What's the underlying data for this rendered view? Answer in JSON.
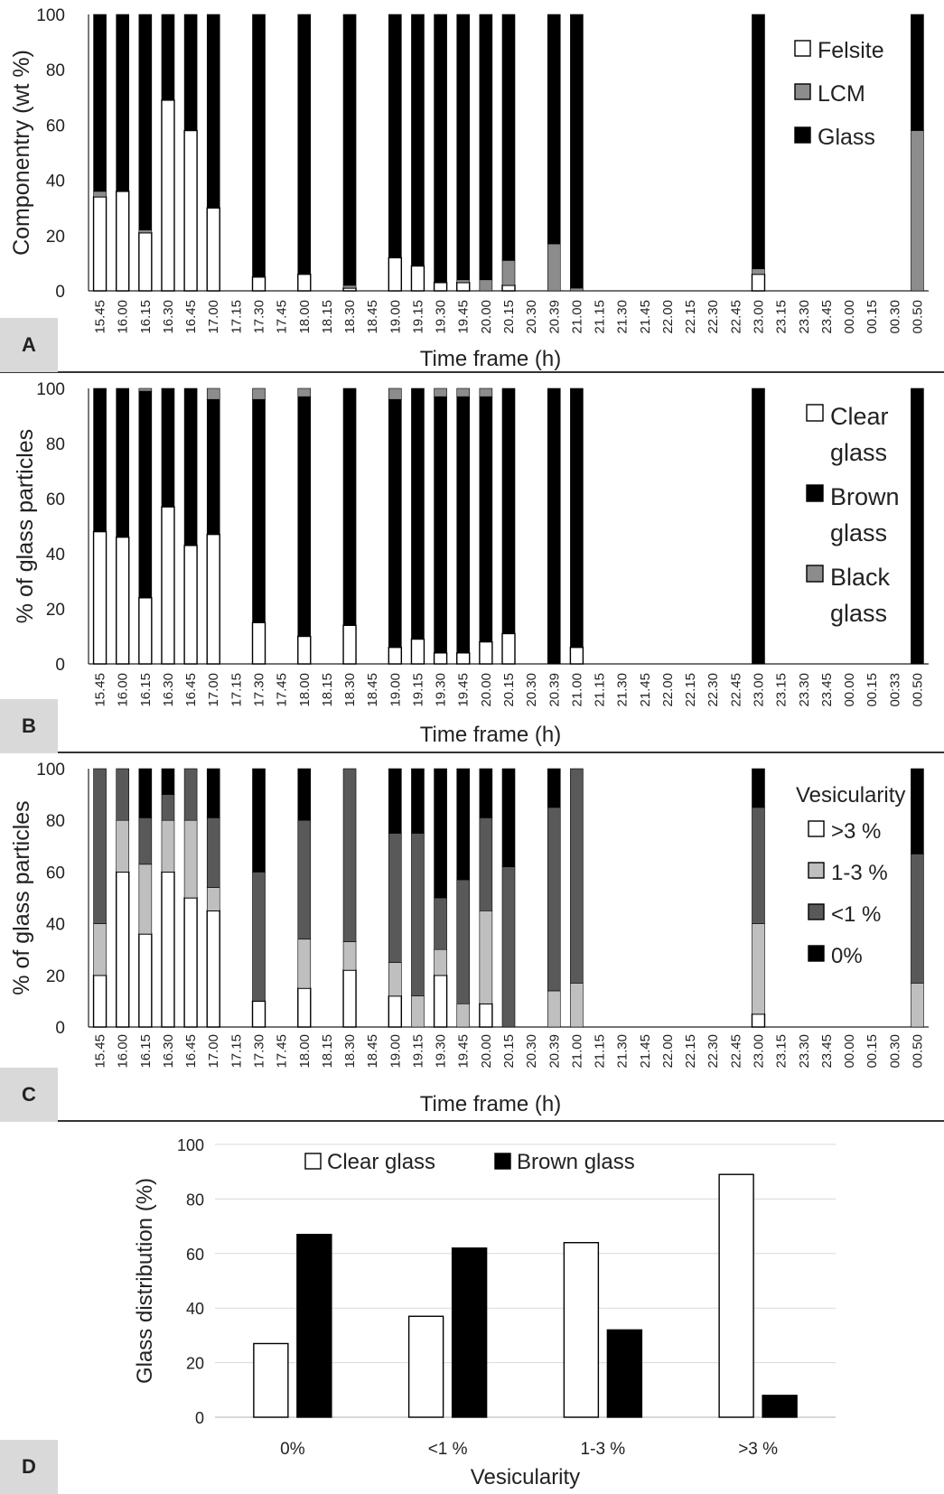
{
  "chart_data": [
    {
      "panel": "A",
      "type": "bar",
      "stacked": true,
      "ylabel": "Componentry (wt %)",
      "xlabel": "Time frame (h)",
      "ylim": [
        0,
        100
      ],
      "yticks": [
        0,
        20,
        40,
        60,
        80,
        100
      ],
      "categories": [
        "15.45",
        "16.00",
        "16.15",
        "16.30",
        "16.45",
        "17.00",
        "17.15",
        "17.30",
        "17.45",
        "18.00",
        "18.15",
        "18.30",
        "18.45",
        "19.00",
        "19.15",
        "19.30",
        "19.45",
        "20.00",
        "20.15",
        "20.30",
        "20.39",
        "21.00",
        "21.15",
        "21.30",
        "21.45",
        "22.00",
        "22.15",
        "22.30",
        "22.45",
        "23.00",
        "23.15",
        "23.30",
        "23.45",
        "00.00",
        "00.15",
        "00.30",
        "00.50"
      ],
      "legend": "right",
      "series": [
        {
          "name": "Felsite",
          "color": "#ffffff",
          "values": [
            34,
            36,
            21,
            69,
            58,
            30,
            null,
            5,
            null,
            6,
            null,
            1,
            null,
            12,
            9,
            3,
            3,
            0,
            2,
            null,
            0,
            0,
            null,
            null,
            null,
            null,
            null,
            null,
            null,
            6,
            null,
            null,
            null,
            null,
            null,
            null,
            0
          ]
        },
        {
          "name": "LCM",
          "color": "#8c8c8c",
          "values": [
            2,
            0,
            1,
            0,
            0,
            0,
            null,
            0,
            null,
            0,
            null,
            1,
            null,
            0,
            0,
            0,
            1,
            4,
            9,
            null,
            17,
            1,
            null,
            null,
            null,
            null,
            null,
            null,
            null,
            2,
            null,
            null,
            null,
            null,
            null,
            null,
            58
          ]
        },
        {
          "name": "Glass",
          "color": "#000000",
          "values": [
            64,
            64,
            78,
            31,
            42,
            70,
            null,
            95,
            null,
            94,
            null,
            98,
            null,
            88,
            91,
            97,
            96,
            96,
            89,
            null,
            83,
            99,
            null,
            null,
            null,
            null,
            null,
            null,
            null,
            92,
            null,
            null,
            null,
            null,
            null,
            null,
            42
          ]
        }
      ]
    },
    {
      "panel": "B",
      "type": "bar",
      "stacked": true,
      "ylabel": "% of glass particles",
      "xlabel": "Time frame (h)",
      "ylim": [
        0,
        100
      ],
      "yticks": [
        0,
        20,
        40,
        60,
        80,
        100
      ],
      "categories": [
        "15.45",
        "16.00",
        "16.15",
        "16.30",
        "16.45",
        "17.00",
        "17.15",
        "17.30",
        "17.45",
        "18.00",
        "18.15",
        "18.30",
        "18.45",
        "19.00",
        "19.15",
        "19.30",
        "19.45",
        "20.00",
        "20.15",
        "20.30",
        "20.39",
        "21.00",
        "21.15",
        "21.30",
        "21.45",
        "22.00",
        "22.15",
        "22.30",
        "22.45",
        "23.00",
        "23.15",
        "23.30",
        "23.45",
        "00.00",
        "00.15",
        "00:33",
        "00.50"
      ],
      "legend": "right",
      "series": [
        {
          "name": "Clear glass",
          "color": "#ffffff",
          "values": [
            48,
            46,
            24,
            57,
            43,
            47,
            null,
            15,
            null,
            10,
            null,
            14,
            null,
            6,
            9,
            4,
            4,
            8,
            11,
            null,
            0,
            6,
            null,
            null,
            null,
            null,
            null,
            null,
            null,
            0,
            null,
            null,
            null,
            null,
            null,
            null,
            0
          ]
        },
        {
          "name": "Brown glass",
          "color": "#000000",
          "values": [
            52,
            54,
            75,
            43,
            57,
            49,
            null,
            81,
            null,
            87,
            null,
            86,
            null,
            90,
            91,
            93,
            93,
            89,
            89,
            null,
            100,
            94,
            null,
            null,
            null,
            null,
            null,
            null,
            null,
            100,
            null,
            null,
            null,
            null,
            null,
            null,
            100
          ]
        },
        {
          "name": "Black glass",
          "color": "#8c8c8c",
          "values": [
            0,
            0,
            1,
            0,
            0,
            4,
            null,
            4,
            null,
            3,
            null,
            0,
            null,
            4,
            0,
            3,
            3,
            3,
            0,
            null,
            0,
            0,
            null,
            null,
            null,
            null,
            null,
            null,
            null,
            0,
            null,
            null,
            null,
            null,
            null,
            null,
            0
          ]
        }
      ]
    },
    {
      "panel": "C",
      "type": "bar",
      "stacked": true,
      "ylabel": "% of glass particles",
      "xlabel": "Time frame (h)",
      "ylim": [
        0,
        100
      ],
      "yticks": [
        0,
        20,
        40,
        60,
        80,
        100
      ],
      "categories": [
        "15.45",
        "16.00",
        "16.15",
        "16.30",
        "16.45",
        "17.00",
        "17.15",
        "17.30",
        "17.45",
        "18.00",
        "18.15",
        "18.30",
        "18.45",
        "19.00",
        "19.15",
        "19.30",
        "19.45",
        "20.00",
        "20.15",
        "20.30",
        "20.39",
        "21.00",
        "21.15",
        "21.30",
        "21.45",
        "22.00",
        "22.15",
        "22.30",
        "22.45",
        "23.00",
        "23.15",
        "23.30",
        "23.45",
        "00.00",
        "00.15",
        "00.30",
        "00.50"
      ],
      "legend": "right",
      "legend_title": "Vesicularity",
      "series": [
        {
          "name": ">3 %",
          "color": "#ffffff",
          "values": [
            20,
            60,
            36,
            60,
            50,
            45,
            null,
            10,
            null,
            15,
            null,
            22,
            null,
            12,
            0,
            20,
            0,
            9,
            0,
            null,
            0,
            0,
            null,
            null,
            null,
            null,
            null,
            null,
            null,
            5,
            null,
            null,
            null,
            null,
            null,
            null,
            0
          ]
        },
        {
          "name": "1-3 %",
          "color": "#bfbfbf",
          "values": [
            20,
            20,
            27,
            20,
            30,
            9,
            null,
            0,
            null,
            19,
            null,
            11,
            null,
            13,
            12,
            10,
            9,
            36,
            0,
            null,
            14,
            17,
            null,
            null,
            null,
            null,
            null,
            null,
            null,
            35,
            null,
            null,
            null,
            null,
            null,
            null,
            17
          ]
        },
        {
          "name": "<1 %",
          "color": "#595959",
          "values": [
            60,
            20,
            18,
            10,
            20,
            27,
            null,
            50,
            null,
            46,
            null,
            67,
            null,
            50,
            63,
            20,
            48,
            36,
            62,
            null,
            71,
            83,
            null,
            null,
            null,
            null,
            null,
            null,
            null,
            45,
            null,
            null,
            null,
            null,
            null,
            null,
            50
          ]
        },
        {
          "name": "0%",
          "color": "#000000",
          "values": [
            0,
            0,
            19,
            10,
            0,
            19,
            null,
            40,
            null,
            20,
            null,
            0,
            null,
            25,
            25,
            50,
            43,
            19,
            38,
            null,
            15,
            0,
            null,
            null,
            null,
            null,
            null,
            null,
            null,
            15,
            null,
            null,
            null,
            null,
            null,
            null,
            33
          ]
        }
      ]
    },
    {
      "panel": "D",
      "type": "bar",
      "stacked": false,
      "ylabel": "Glass distribution (%)",
      "xlabel": "Vesicularity",
      "ylim": [
        0,
        100
      ],
      "yticks": [
        0,
        20,
        40,
        60,
        80,
        100
      ],
      "grid": true,
      "legend": "top",
      "categories": [
        "0%",
        "<1 %",
        "1-3 %",
        ">3 %"
      ],
      "series": [
        {
          "name": "Clear glass",
          "color": "#ffffff",
          "values": [
            27,
            37,
            64,
            89
          ]
        },
        {
          "name": "Brown glass",
          "color": "#000000",
          "values": [
            67,
            62,
            32,
            8
          ]
        }
      ]
    }
  ]
}
